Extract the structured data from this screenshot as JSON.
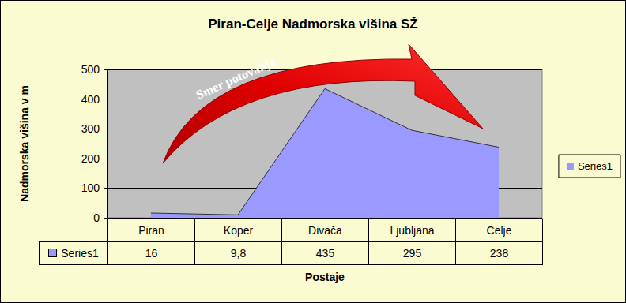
{
  "chart_data": {
    "type": "area",
    "title": "Piran-Celje Nadmorska višina SŽ",
    "xlabel": "Postaje",
    "ylabel": "Nadmorska višina v m",
    "categories": [
      "Piran",
      "Koper",
      "Divača",
      "Ljubljana",
      "Celje"
    ],
    "series": [
      {
        "name": "Series1",
        "color": "#9999ff",
        "values": [
          16,
          9.8,
          435,
          295,
          238
        ],
        "value_labels": [
          "16",
          "9,8",
          "435",
          "295",
          "238"
        ]
      }
    ],
    "ylim": [
      0,
      500
    ],
    "yticks": [
      0,
      100,
      200,
      300,
      400,
      500
    ],
    "grid": true,
    "legend": "right",
    "annotations": [
      "Smer potovanja"
    ]
  }
}
